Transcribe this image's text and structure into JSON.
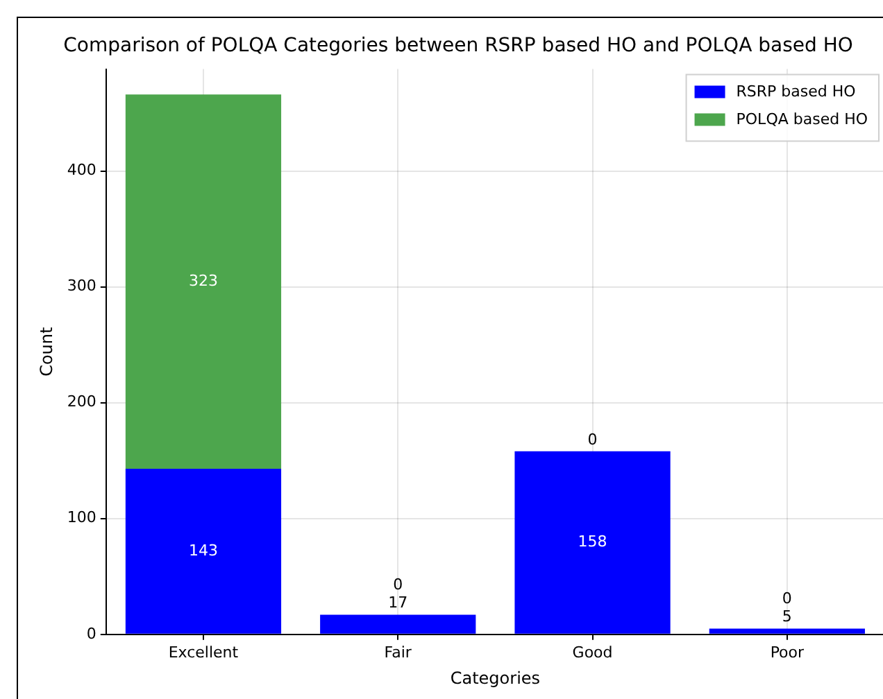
{
  "chart_data": {
    "type": "bar",
    "title": "Comparison of POLQA Categories between RSRP based HO and POLQA based HO",
    "xlabel": "Categories",
    "ylabel": "Count",
    "categories": [
      "Excellent",
      "Fair",
      "Good",
      "Poor"
    ],
    "series": [
      {
        "name": "RSRP based HO",
        "color": "#0000ff",
        "values": [
          143,
          17,
          158,
          5
        ]
      },
      {
        "name": "POLQA based HO",
        "color": "#4da64d",
        "values": [
          323,
          0,
          0,
          0
        ]
      }
    ],
    "stacked": true,
    "data_labels": true,
    "ylim": [
      0,
      488
    ],
    "yticks": [
      0,
      100,
      200,
      300,
      400
    ],
    "grid": true,
    "legend": "top right"
  }
}
